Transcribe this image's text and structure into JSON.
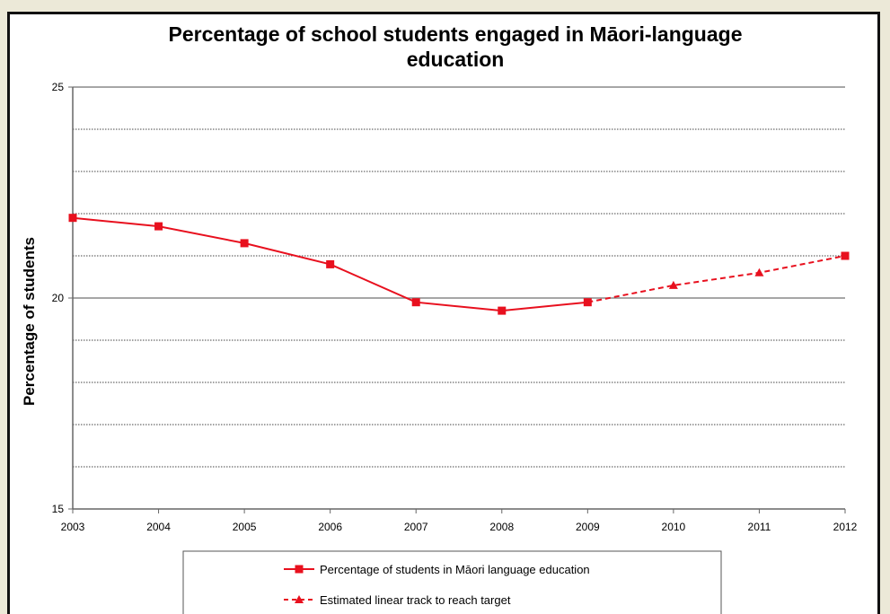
{
  "chart_data": {
    "type": "line",
    "title_line1": "Percentage of school students engaged in Māori-language",
    "title_line2": "education",
    "ylabel": "Percentage of students",
    "xlabel": "",
    "ylim": [
      15,
      25
    ],
    "yticks": [
      15,
      20,
      25
    ],
    "categories": [
      "2003",
      "2004",
      "2005",
      "2006",
      "2007",
      "2008",
      "2009",
      "2010",
      "2011",
      "2012"
    ],
    "series": [
      {
        "name": "Percentage of students in Māori language education",
        "color": "#e8101e",
        "style": "solid",
        "marker": "square",
        "values": [
          21.9,
          21.7,
          21.3,
          20.8,
          19.9,
          19.7,
          19.9,
          null,
          null,
          21.0
        ]
      },
      {
        "name": "Estimated linear track to reach target",
        "color": "#e8101e",
        "style": "dashed",
        "marker": "triangle",
        "values": [
          null,
          null,
          null,
          null,
          null,
          null,
          19.9,
          20.3,
          20.6,
          21.0
        ]
      }
    ],
    "grid": true,
    "legend_position": "bottom"
  }
}
